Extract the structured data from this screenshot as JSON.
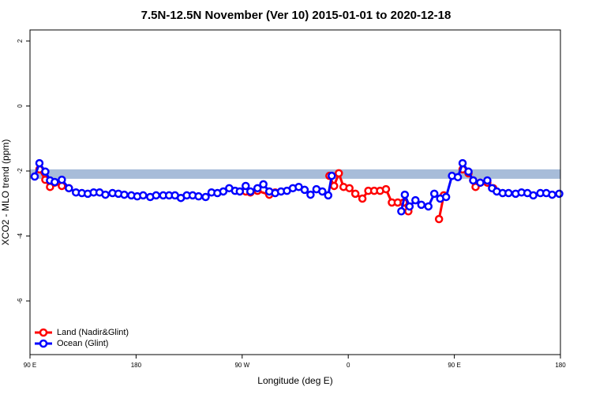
{
  "chart_data": {
    "type": "line",
    "title": "7.5N-12.5N November (Ver 10)   2015-01-01 to 2020-12-18",
    "xlabel": "Longitude (deg E)",
    "ylabel": "XCO2 - MLO trend (ppm)",
    "xlim": [
      90,
      540
    ],
    "ylim": [
      -7.65,
      2.34
    ],
    "xticks": [
      {
        "value": 90,
        "label": "90 E"
      },
      180,
      {
        "value": 270,
        "label": "90 W"
      },
      {
        "value": 360,
        "label": "0"
      },
      {
        "value": 450,
        "label": "90 E"
      },
      {
        "value": 540,
        "label": "180"
      }
    ],
    "yticks": [
      2,
      0,
      -2,
      -4,
      -6
    ],
    "band": [
      -2.24,
      -1.95
    ],
    "band_color": "#a7bcd9",
    "legend": "bottom-left",
    "series": [
      {
        "name": "Land (Nadir&Glint)",
        "color": "#ff0000",
        "x": [
          98,
          103,
          107,
          111,
          117,
          123,
          null,
          273,
          277,
          283,
          293,
          298,
          null,
          344,
          348,
          352,
          356,
          361,
          366,
          372,
          377,
          382,
          387,
          392,
          397,
          402,
          407,
          411,
          null,
          437,
          441,
          null,
          457,
          462,
          466,
          468,
          472,
          478,
          483
        ],
        "values": [
          -1.95,
          -2.27,
          -2.49,
          -2.36,
          -2.46,
          -2.53,
          null,
          -2.63,
          -2.66,
          -2.61,
          -2.73,
          -2.66,
          null,
          -2.15,
          -2.46,
          -2.07,
          -2.49,
          -2.53,
          -2.7,
          -2.85,
          -2.61,
          -2.61,
          -2.61,
          -2.56,
          -2.97,
          -2.97,
          -2.97,
          -3.24,
          null,
          -3.48,
          -2.75,
          null,
          -1.95,
          -2.07,
          -2.29,
          -2.49,
          -2.36,
          -2.36,
          -2.53
        ]
      },
      {
        "name": "Ocean (Glint)",
        "color": "#0000ff",
        "x": [
          94,
          98,
          103,
          107,
          111,
          117,
          123,
          129,
          134,
          139,
          144,
          149,
          154,
          160,
          165,
          170,
          176,
          181,
          186,
          192,
          197,
          203,
          208,
          213,
          218,
          223,
          228,
          233,
          239,
          244,
          249,
          254,
          259,
          264,
          268,
          273,
          277,
          283,
          288,
          293,
          298,
          303,
          308,
          313,
          318,
          323,
          328,
          333,
          338,
          343,
          346,
          null,
          405,
          408,
          412,
          417,
          422,
          428,
          433,
          438,
          443,
          448,
          453,
          457,
          462,
          466,
          472,
          478,
          482,
          486,
          491,
          496,
          502,
          507,
          512,
          517,
          523,
          528,
          533,
          539
        ],
        "values": [
          -2.17,
          -1.76,
          -2.02,
          -2.29,
          -2.34,
          -2.27,
          -2.53,
          -2.66,
          -2.68,
          -2.7,
          -2.66,
          -2.66,
          -2.73,
          -2.68,
          -2.7,
          -2.73,
          -2.75,
          -2.78,
          -2.75,
          -2.8,
          -2.75,
          -2.75,
          -2.75,
          -2.75,
          -2.83,
          -2.75,
          -2.75,
          -2.78,
          -2.8,
          -2.66,
          -2.68,
          -2.63,
          -2.53,
          -2.61,
          -2.63,
          -2.46,
          -2.63,
          -2.53,
          -2.41,
          -2.63,
          -2.68,
          -2.63,
          -2.61,
          -2.53,
          -2.49,
          -2.58,
          -2.73,
          -2.56,
          -2.63,
          -2.75,
          -2.15,
          null,
          -3.24,
          -2.73,
          -3.09,
          -2.9,
          -3.04,
          -3.09,
          -2.7,
          -2.85,
          -2.8,
          -2.15,
          -2.19,
          -1.76,
          -2.02,
          -2.29,
          -2.36,
          -2.29,
          -2.53,
          -2.63,
          -2.68,
          -2.68,
          -2.7,
          -2.66,
          -2.68,
          -2.75,
          -2.68,
          -2.68,
          -2.73,
          -2.7
        ]
      }
    ]
  }
}
